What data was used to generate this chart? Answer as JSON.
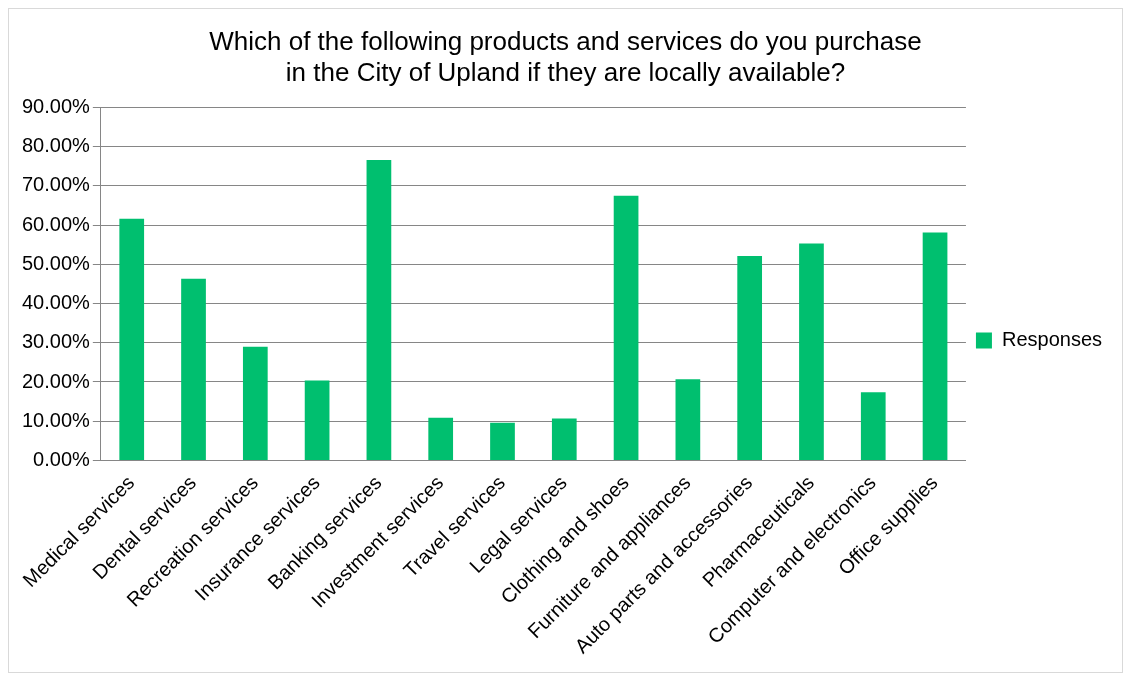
{
  "chart_data": {
    "type": "bar",
    "title": "Which of the following products and services do you purchase\nin the City of Upland if they are locally available?",
    "categories": [
      "Medical services",
      "Dental services",
      "Recreation services",
      "Insurance services",
      "Banking services",
      "Investment services",
      "Travel services",
      "Legal services",
      "Clothing and shoes",
      "Furniture and appliances",
      "Auto parts and accessories",
      "Pharmaceuticals",
      "Computer and electronics",
      "Office supplies"
    ],
    "series": [
      {
        "name": "Responses",
        "color": "#00bf6f",
        "values": [
          61.6,
          46.3,
          29.0,
          20.4,
          76.6,
          10.9,
          9.6,
          10.7,
          67.5,
          20.7,
          52.1,
          55.3,
          17.4,
          58.1
        ]
      }
    ],
    "ylim": [
      0,
      90
    ],
    "yticks": [
      {
        "value": 0,
        "label": "0.00%"
      },
      {
        "value": 10,
        "label": "10.00%"
      },
      {
        "value": 20,
        "label": "20.00%"
      },
      {
        "value": 30,
        "label": "30.00%"
      },
      {
        "value": 40,
        "label": "40.00%"
      },
      {
        "value": 50,
        "label": "50.00%"
      },
      {
        "value": 60,
        "label": "60.00%"
      },
      {
        "value": 70,
        "label": "70.00%"
      },
      {
        "value": 80,
        "label": "80.00%"
      },
      {
        "value": 90,
        "label": "90.00%"
      }
    ],
    "grid": "y",
    "legend": "right"
  }
}
